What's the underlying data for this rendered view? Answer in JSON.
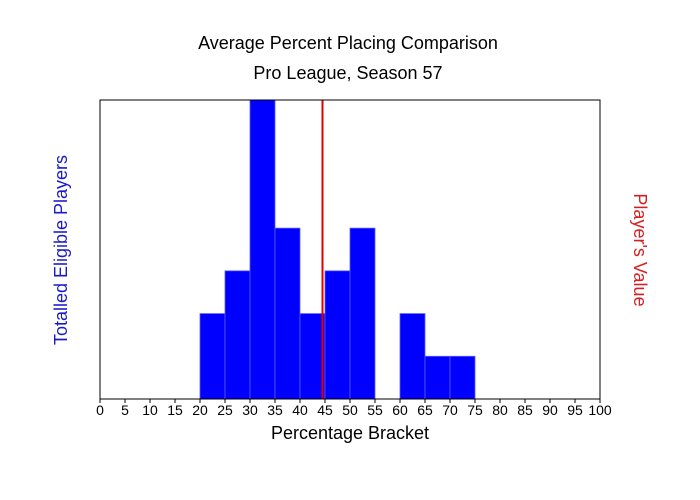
{
  "chart_data": {
    "type": "bar",
    "title": "Average Percent Placing Comparison",
    "subtitle": "Pro League, Season 57",
    "xlabel": "Percentage Bracket",
    "ylabel": "Totalled Eligible Players",
    "right_label": "Player's Value",
    "x_ticks": [
      "0",
      "5",
      "10",
      "15",
      "20",
      "25",
      "30",
      "35",
      "40",
      "45",
      "50",
      "55",
      "60",
      "65",
      "70",
      "75",
      "80",
      "85",
      "90",
      "95",
      "100"
    ],
    "xlim": [
      0,
      100
    ],
    "ylim": [
      0,
      7
    ],
    "bin_width": 5,
    "bins": [
      {
        "start": 20,
        "count": 2
      },
      {
        "start": 25,
        "count": 3
      },
      {
        "start": 30,
        "count": 7
      },
      {
        "start": 35,
        "count": 4
      },
      {
        "start": 40,
        "count": 2
      },
      {
        "start": 45,
        "count": 3
      },
      {
        "start": 50,
        "count": 4
      },
      {
        "start": 60,
        "count": 2
      },
      {
        "start": 65,
        "count": 1
      },
      {
        "start": 70,
        "count": 1
      }
    ],
    "player_value": 44.5,
    "grid": false,
    "colors": {
      "bars": "#0000ff",
      "bar_edge": "#5a5aff",
      "player_line": "#e00000",
      "left_label": "#1a1acc",
      "right_label": "#d42020"
    }
  }
}
